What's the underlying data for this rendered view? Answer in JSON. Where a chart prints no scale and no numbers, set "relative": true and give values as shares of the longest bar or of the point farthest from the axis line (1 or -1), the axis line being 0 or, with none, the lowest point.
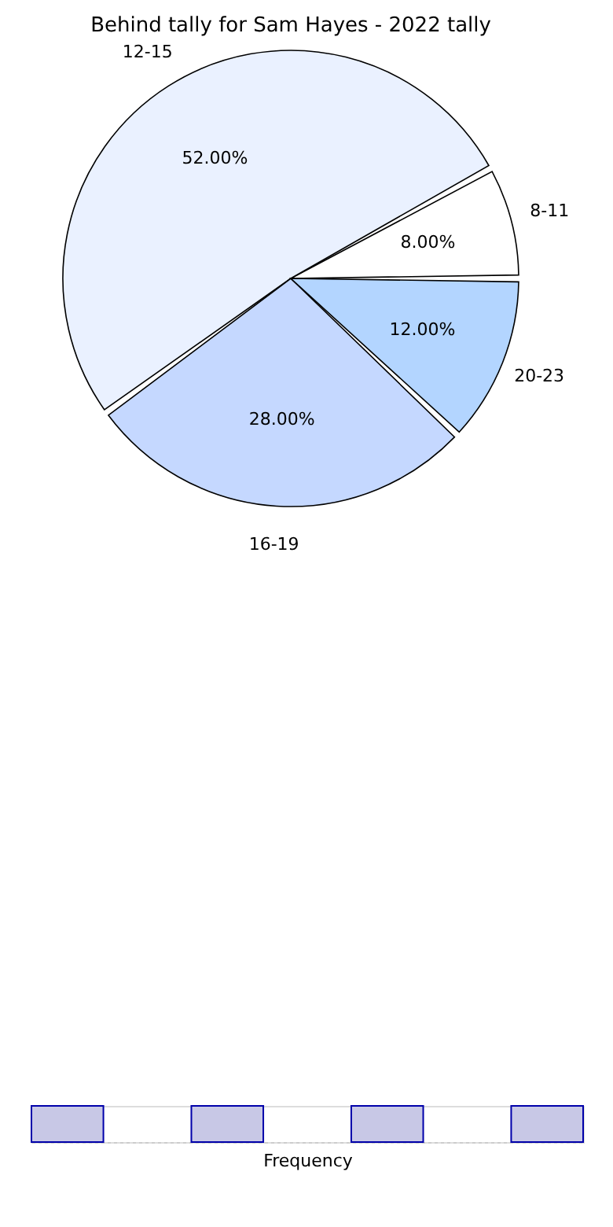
{
  "chart_data": [
    {
      "type": "pie",
      "title": "Behind tally for Sam Hayes - 2022 tally",
      "categories": [
        "8-11",
        "12-15",
        "16-19",
        "20-23"
      ],
      "values": [
        8,
        52,
        28,
        12
      ],
      "colors": [
        "#ffffff",
        "#eaf1ff",
        "#c5d8ff",
        "#b3d5ff"
      ],
      "value_labels": [
        "8.00%",
        "52.00%",
        "28.00%",
        "12.00%"
      ]
    },
    {
      "type": "bar",
      "relative": true,
      "xlabel": "Frequency",
      "categories": [
        null,
        null,
        null,
        null
      ],
      "values": [
        1,
        1,
        1,
        1
      ],
      "color": "#c8c8e6"
    }
  ]
}
